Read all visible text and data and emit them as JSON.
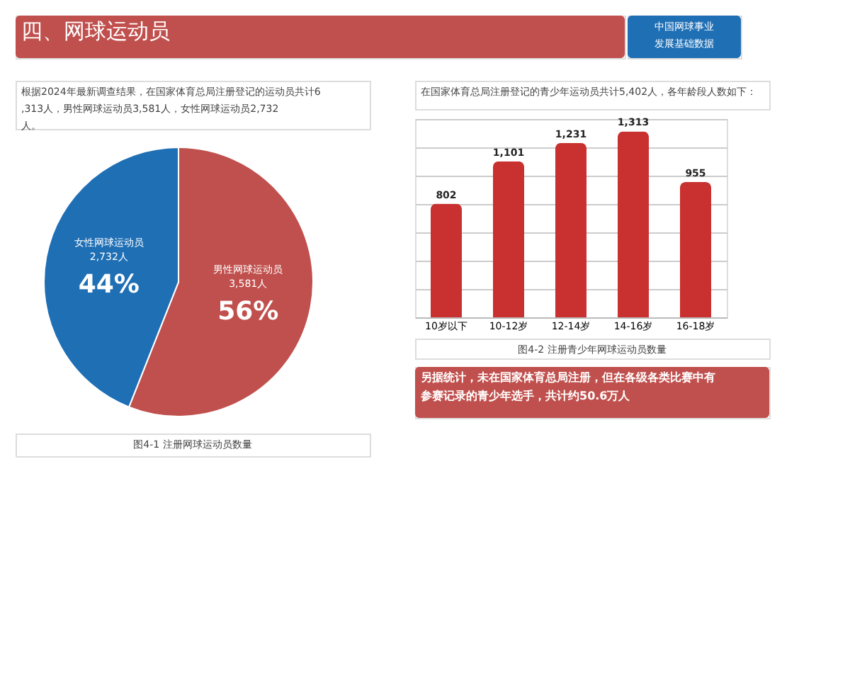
{
  "chart_data": [
    {
      "type": "pie",
      "title": "图4-1 注册网球运动员数量",
      "categories": [
        "男性网球运动员",
        "女性网球运动员"
      ],
      "values": [
        56,
        44
      ],
      "colors": [
        "#c0504d",
        "#1f6fb5"
      ],
      "value_labels": [
        "3,581人\n56%",
        "2,732人\n44%"
      ],
      "annotations": [
        "四、网球运动员",
        "中国网球事业发展基础数据",
        "根据2024年最新调查结果，在国家体育总局注册登记的运动员共计6,313人，男性网球运动员3,581人，女性网球运动员2,732人。"
      ]
    },
    {
      "type": "bar",
      "title": "图4-2 注册青少年网球运动员数量",
      "categories": [
        "10岁以下",
        "10-12岁",
        "12-14岁",
        "14-16岁",
        "16-18岁"
      ],
      "series": [
        {
          "color": "#c8312f",
          "values": [
            802,
            1101,
            1231,
            1313,
            955
          ],
          "value_labels": [
            "802",
            "1,101",
            "1,231",
            "1,313",
            "955"
          ]
        }
      ],
      "grid": "y",
      "ylim": [
        0,
        1400
      ],
      "tick_labels": "x",
      "annotations": [
        "在国家体育总局注册登记的青少年运动员共计5,402人，各年龄段人数如下：",
        "另据统计，未在国家体育总局注册，但在各级各类比赛中有参赛记录的青少年选手，共计约50.6万人"
      ]
    }
  ]
}
